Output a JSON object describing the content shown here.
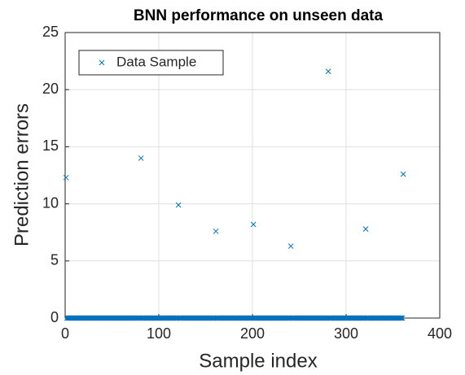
{
  "chart_data": {
    "type": "scatter",
    "title": "BNN performance on unseen data",
    "xlabel": "Sample index",
    "ylabel": "Prediction errors",
    "xlim": [
      0,
      400
    ],
    "ylim": [
      0,
      25
    ],
    "xticks": [
      0,
      100,
      200,
      300,
      400
    ],
    "yticks": [
      0,
      5,
      10,
      15,
      20,
      25
    ],
    "grid": true,
    "legend": "northwest",
    "marker": "x",
    "x": [
      1,
      2,
      3,
      4,
      5,
      6,
      7,
      8,
      9,
      10,
      11,
      12,
      13,
      14,
      15,
      16,
      17,
      18,
      19,
      20,
      21,
      22,
      23,
      24,
      25,
      26,
      27,
      28,
      29,
      30,
      31,
      32,
      33,
      34,
      35,
      36,
      37,
      38,
      39,
      40,
      41,
      42,
      43,
      44,
      45,
      46,
      47,
      48,
      49,
      50,
      51,
      52,
      53,
      54,
      55,
      56,
      57,
      58,
      59,
      60,
      61,
      62,
      63,
      64,
      65,
      66,
      67,
      68,
      69,
      70,
      71,
      72,
      73,
      74,
      75,
      76,
      77,
      78,
      79,
      80,
      81,
      82,
      83,
      84,
      85,
      86,
      87,
      88,
      89,
      90,
      91,
      92,
      93,
      94,
      95,
      96,
      97,
      98,
      99,
      100,
      101,
      102,
      103,
      104,
      105,
      106,
      107,
      108,
      109,
      110,
      111,
      112,
      113,
      114,
      115,
      116,
      117,
      118,
      119,
      120,
      121,
      122,
      123,
      124,
      125,
      126,
      127,
      128,
      129,
      130,
      131,
      132,
      133,
      134,
      135,
      136,
      137,
      138,
      139,
      140,
      141,
      142,
      143,
      144,
      145,
      146,
      147,
      148,
      149,
      150,
      151,
      152,
      153,
      154,
      155,
      156,
      157,
      158,
      159,
      160,
      161,
      162,
      163,
      164,
      165,
      166,
      167,
      168,
      169,
      170,
      171,
      172,
      173,
      174,
      175,
      176,
      177,
      178,
      179,
      180,
      181,
      182,
      183,
      184,
      185,
      186,
      187,
      188,
      189,
      190,
      191,
      192,
      193,
      194,
      195,
      196,
      197,
      198,
      199,
      200,
      201,
      202,
      203,
      204,
      205,
      206,
      207,
      208,
      209,
      210,
      211,
      212,
      213,
      214,
      215,
      216,
      217,
      218,
      219,
      220,
      221,
      222,
      223,
      224,
      225,
      226,
      227,
      228,
      229,
      230,
      231,
      232,
      233,
      234,
      235,
      236,
      237,
      238,
      239,
      240,
      241,
      242,
      243,
      244,
      245,
      246,
      247,
      248,
      249,
      250,
      251,
      252,
      253,
      254,
      255,
      256,
      257,
      258,
      259,
      260,
      261,
      262,
      263,
      264,
      265,
      266,
      267,
      268,
      269,
      270,
      271,
      272,
      273,
      274,
      275,
      276,
      277,
      278,
      279,
      280,
      281,
      282,
      283,
      284,
      285,
      286,
      287,
      288,
      289,
      290,
      291,
      292,
      293,
      294,
      295,
      296,
      297,
      298,
      299,
      300,
      301,
      302,
      303,
      304,
      305,
      306,
      307,
      308,
      309,
      310,
      311,
      312,
      313,
      314,
      315,
      316,
      317,
      318,
      319,
      320,
      321,
      322,
      323,
      324,
      325,
      326,
      327,
      328,
      329,
      330,
      331,
      332,
      333,
      334,
      335,
      336,
      337,
      338,
      339,
      340,
      341,
      342,
      343,
      344,
      345,
      346,
      347,
      348,
      349,
      350,
      351,
      352,
      353,
      354,
      355,
      356,
      357,
      358,
      359,
      360,
      361
    ],
    "series": [
      {
        "name": "Data Sample",
        "color": "#0072bd",
        "values": [
          12.3,
          0,
          0,
          0,
          0,
          0,
          0,
          0,
          0,
          0,
          0,
          0,
          0,
          0,
          0,
          0,
          0,
          0,
          0,
          0,
          0,
          0,
          0,
          0,
          0,
          0,
          0,
          0,
          0,
          0,
          0,
          0,
          0,
          0,
          0,
          0,
          0,
          0,
          0,
          0,
          0,
          0,
          0,
          0,
          0,
          0,
          0,
          0,
          0,
          0,
          0,
          0,
          0,
          0,
          0,
          0,
          0,
          0,
          0,
          0,
          0,
          0,
          0,
          0,
          0,
          0,
          0,
          0,
          0,
          0,
          0,
          0,
          0,
          0,
          0,
          0,
          0,
          0,
          0,
          0,
          14,
          0,
          0,
          0,
          0,
          0,
          0,
          0,
          0,
          0,
          0,
          0,
          0,
          0,
          0,
          0,
          0,
          0,
          0,
          0,
          0,
          0,
          0,
          0,
          0,
          0,
          0,
          0,
          0,
          0,
          0,
          0,
          0,
          0,
          0,
          0,
          0,
          0,
          0,
          0,
          9.9,
          0,
          0,
          0,
          0,
          0,
          0,
          0,
          0,
          0,
          0,
          0,
          0,
          0,
          0,
          0,
          0,
          0,
          0,
          0,
          0,
          0,
          0,
          0,
          0,
          0,
          0,
          0,
          0,
          0,
          0,
          0,
          0,
          0,
          0,
          0,
          0,
          0,
          0,
          0,
          7.6,
          0,
          0,
          0,
          0,
          0,
          0,
          0,
          0,
          0,
          0,
          0,
          0,
          0,
          0,
          0,
          0,
          0,
          0,
          0,
          0,
          0,
          0,
          0,
          0,
          0,
          0,
          0,
          0,
          0,
          0,
          0,
          0,
          0,
          0,
          0,
          0,
          0,
          0,
          0,
          8.2,
          0,
          0,
          0,
          0,
          0,
          0,
          0,
          0,
          0,
          0,
          0,
          0,
          0,
          0,
          0,
          0,
          0,
          0,
          0,
          0,
          0,
          0,
          0,
          0,
          0,
          0,
          0,
          0,
          0,
          0,
          0,
          0,
          0,
          0,
          0,
          0,
          0,
          0,
          0,
          6.3,
          0,
          0,
          0,
          0,
          0,
          0,
          0,
          0,
          0,
          0,
          0,
          0,
          0,
          0,
          0,
          0,
          0,
          0,
          0,
          0,
          0,
          0,
          0,
          0,
          0,
          0,
          0,
          0,
          0,
          0,
          0,
          0,
          0,
          0,
          0,
          0,
          0,
          0,
          0,
          21.6,
          0,
          0,
          0,
          0,
          0,
          0,
          0,
          0,
          0,
          0,
          0,
          0,
          0,
          0,
          0,
          0,
          0,
          0,
          0,
          0,
          0,
          0,
          0,
          0,
          0,
          0,
          0,
          0,
          0,
          0,
          0,
          0,
          0,
          0,
          0,
          0,
          0,
          0,
          0,
          7.8,
          0,
          0,
          0,
          0,
          0,
          0,
          0,
          0,
          0,
          0,
          0,
          0,
          0,
          0,
          0,
          0,
          0,
          0,
          0,
          0,
          0,
          0,
          0,
          0,
          0,
          0,
          0,
          0,
          0,
          0,
          0,
          0,
          0,
          0,
          0,
          0,
          0,
          0,
          0,
          12.6
        ]
      }
    ]
  }
}
